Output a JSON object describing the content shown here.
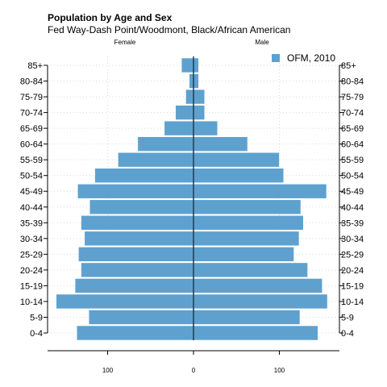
{
  "chart_data": {
    "type": "bar",
    "orientation": "horizontal",
    "title": "Population by Age and Sex",
    "subtitle": "Fed Way-Dash Point/Woodmont, Black/African American",
    "left_label": "Female",
    "right_label": "Male",
    "categories": [
      "0-4",
      "5-9",
      "10-14",
      "15-19",
      "20-24",
      "25-29",
      "30-34",
      "35-39",
      "40-44",
      "45-49",
      "50-54",
      "55-59",
      "60-64",
      "65-69",
      "70-74",
      "75-79",
      "80-84",
      "85+"
    ],
    "series": [
      {
        "name": "OFM, 2010",
        "female": [
          136,
          122,
          160,
          138,
          131,
          134,
          127,
          131,
          121,
          135,
          115,
          88,
          65,
          34,
          21,
          9,
          5,
          14
        ],
        "male": [
          145,
          124,
          156,
          150,
          133,
          117,
          123,
          128,
          125,
          155,
          105,
          100,
          63,
          28,
          13,
          13,
          6,
          6
        ]
      }
    ],
    "xlim": [
      -170,
      170
    ],
    "xticks": [
      {
        "value": -100,
        "label": "100"
      },
      {
        "value": 0,
        "label": "0"
      },
      {
        "value": 100,
        "label": "100"
      }
    ],
    "grid": true,
    "legend_position": "top-right",
    "colors": {
      "bar": "#5ea1cf",
      "center_line": "#1c3c57",
      "grid": "#d9d9d9"
    }
  }
}
